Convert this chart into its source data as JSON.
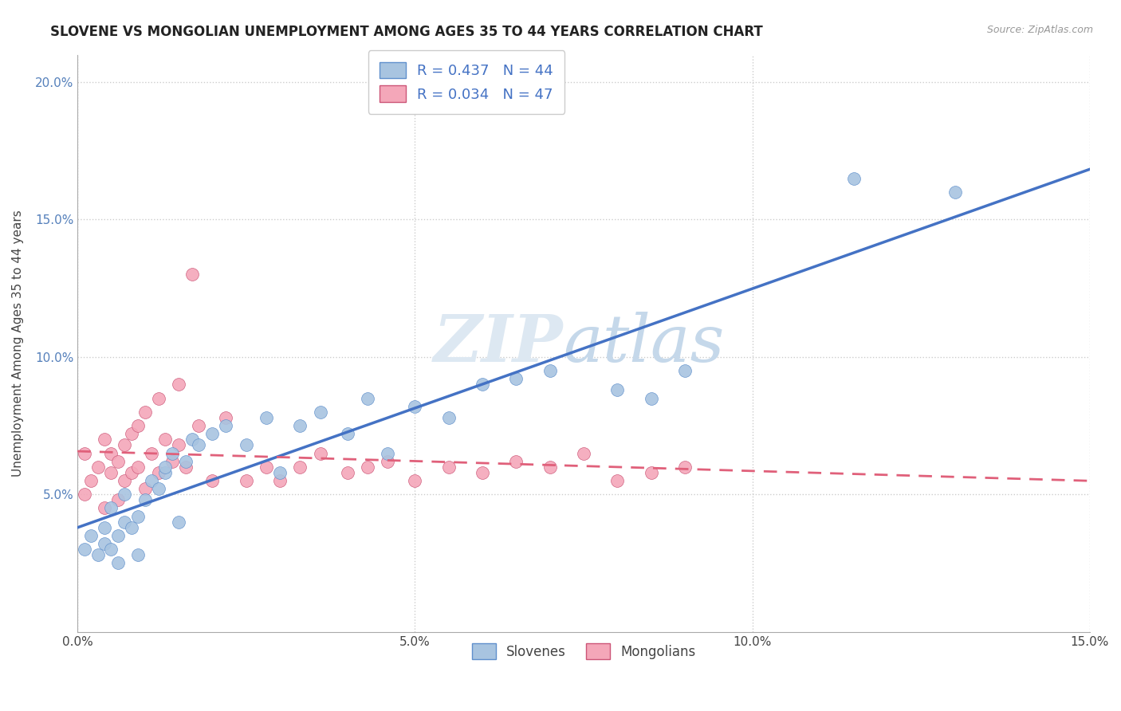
{
  "title": "SLOVENE VS MONGOLIAN UNEMPLOYMENT AMONG AGES 35 TO 44 YEARS CORRELATION CHART",
  "source": "Source: ZipAtlas.com",
  "ylabel": "Unemployment Among Ages 35 to 44 years",
  "xlim": [
    0.0,
    0.15
  ],
  "ylim": [
    0.0,
    0.21
  ],
  "slovene_R": 0.437,
  "slovene_N": 44,
  "mongolian_R": 0.034,
  "mongolian_N": 47,
  "slovene_color": "#a8c4e0",
  "mongolian_color": "#f4a7b9",
  "slovene_line_color": "#4472c4",
  "mongolian_line_color": "#e0607a",
  "background_color": "#ffffff",
  "grid_color": "#cccccc",
  "slovene_x": [
    0.001,
    0.002,
    0.003,
    0.004,
    0.004,
    0.005,
    0.005,
    0.006,
    0.006,
    0.007,
    0.007,
    0.008,
    0.009,
    0.009,
    0.01,
    0.011,
    0.012,
    0.013,
    0.013,
    0.014,
    0.015,
    0.016,
    0.017,
    0.018,
    0.02,
    0.022,
    0.025,
    0.028,
    0.03,
    0.033,
    0.036,
    0.04,
    0.043,
    0.046,
    0.05,
    0.055,
    0.06,
    0.065,
    0.07,
    0.08,
    0.085,
    0.09,
    0.115,
    0.13
  ],
  "slovene_y": [
    0.03,
    0.035,
    0.028,
    0.032,
    0.038,
    0.03,
    0.045,
    0.035,
    0.025,
    0.04,
    0.05,
    0.038,
    0.042,
    0.028,
    0.048,
    0.055,
    0.052,
    0.058,
    0.06,
    0.065,
    0.04,
    0.062,
    0.07,
    0.068,
    0.072,
    0.075,
    0.068,
    0.078,
    0.058,
    0.075,
    0.08,
    0.072,
    0.085,
    0.065,
    0.082,
    0.078,
    0.09,
    0.092,
    0.095,
    0.088,
    0.085,
    0.095,
    0.165,
    0.16
  ],
  "mongolian_x": [
    0.001,
    0.001,
    0.002,
    0.003,
    0.004,
    0.004,
    0.005,
    0.005,
    0.006,
    0.006,
    0.007,
    0.007,
    0.008,
    0.008,
    0.009,
    0.009,
    0.01,
    0.01,
    0.011,
    0.012,
    0.012,
    0.013,
    0.014,
    0.015,
    0.015,
    0.016,
    0.017,
    0.018,
    0.02,
    0.022,
    0.025,
    0.028,
    0.03,
    0.033,
    0.036,
    0.04,
    0.043,
    0.046,
    0.05,
    0.055,
    0.06,
    0.065,
    0.07,
    0.075,
    0.08,
    0.085,
    0.09
  ],
  "mongolian_y": [
    0.05,
    0.065,
    0.055,
    0.06,
    0.045,
    0.07,
    0.058,
    0.065,
    0.048,
    0.062,
    0.055,
    0.068,
    0.058,
    0.072,
    0.06,
    0.075,
    0.052,
    0.08,
    0.065,
    0.058,
    0.085,
    0.07,
    0.062,
    0.068,
    0.09,
    0.06,
    0.13,
    0.075,
    0.055,
    0.078,
    0.055,
    0.06,
    0.055,
    0.06,
    0.065,
    0.058,
    0.06,
    0.062,
    0.055,
    0.06,
    0.058,
    0.062,
    0.06,
    0.065,
    0.055,
    0.058,
    0.06
  ]
}
